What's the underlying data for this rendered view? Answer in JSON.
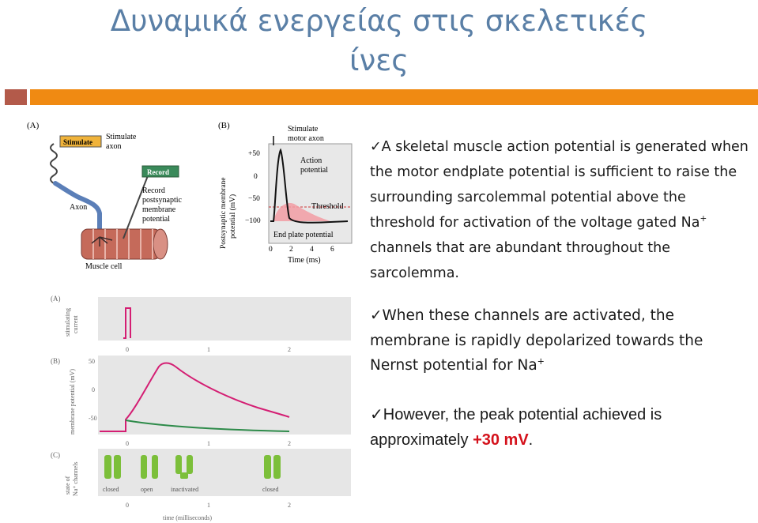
{
  "title": {
    "line1": "Δυναμικά ενεργείας στις σκελετικές",
    "line2": "ίνες"
  },
  "figure_top": {
    "panel_a": {
      "label": "(A)",
      "stimulate": "Stimulate",
      "stimulate_axon": [
        "Stimulate",
        "axon"
      ],
      "record": "Record",
      "record_desc": [
        "Record",
        "postsynaptic",
        "membrane",
        "potential"
      ],
      "axon": "Axon",
      "muscle_cell": "Muscle cell"
    },
    "panel_b": {
      "label": "(B)",
      "ylabel": [
        "Postsynaptic membrane",
        "potential (mV)"
      ],
      "yticks": [
        "+50",
        "0",
        "−50",
        "−100"
      ],
      "xticks": [
        "0",
        "2",
        "4",
        "6"
      ],
      "xlabel": "Time (ms)",
      "stimulate_motor_axon": [
        "Stimulate",
        "motor axon"
      ],
      "action_potential": [
        "Action",
        "potential"
      ],
      "threshold": "Threshold",
      "end_plate": "End plate potential"
    }
  },
  "figure_bottom": {
    "a_label": "(A)",
    "a_ylabel": [
      "stimulating",
      "current"
    ],
    "b_label": "(B)",
    "b_ylabel": "membrane potential (mV)",
    "b_yticks": [
      "50",
      "0",
      "-50"
    ],
    "c_label": "(C)",
    "c_ylabel": [
      "state of",
      "Na⁺ channels"
    ],
    "xticks": [
      "0",
      "1",
      "2"
    ],
    "states": [
      "closed",
      "open",
      "inactivated",
      "closed"
    ],
    "xlabel": "time (milliseconds)"
  },
  "bullets": {
    "check": "✓",
    "b1_pre": "A skeletal muscle action potential is generated when the motor endplate potential is sufficient to raise the surrounding sarcolemmal potential above the threshold for activation of the voltage gated Na",
    "b1_sup": "+",
    "b1_post": " channels that are abundant throughout the sarcolemma.",
    "b2_pre": "When these channels are activated, the membrane is rapidly depolarized towards the Nernst potential for Na",
    "b2_sup": "+",
    "b3_pre": "However, the peak potential achieved is approximately ",
    "b3_value": "+30 mV",
    "b3_post": "."
  },
  "colors": {
    "title": "#5a7fa6",
    "header_bar": "#f08a12",
    "header_bar_left": "#b35a4a",
    "highlight": "#d4111b",
    "trace_pink": "#d41e73",
    "trace_green": "#2e8b4a"
  }
}
